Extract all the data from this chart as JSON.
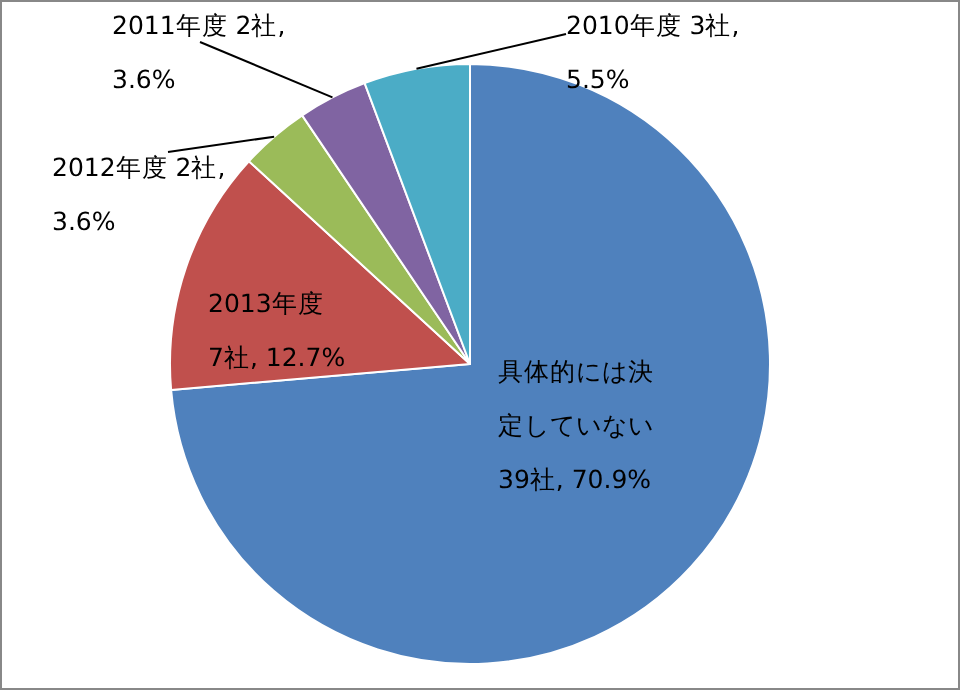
{
  "chart_data": {
    "type": "pie",
    "categories": [
      "具体的には決定していない",
      "2013年度",
      "2012年度",
      "2011年度",
      "2010年度"
    ],
    "values": [
      70.9,
      12.7,
      3.6,
      3.6,
      5.5
    ],
    "colors": [
      "#4f81bd",
      "#c0504d",
      "#9bbb59",
      "#8064a2",
      "#4bacc6"
    ],
    "value_labels": [
      "39社, 70.9%",
      "7社, 12.7%",
      "2社, 3.6%",
      "2社, 3.6%",
      "3社, 5.5%"
    ]
  }
}
